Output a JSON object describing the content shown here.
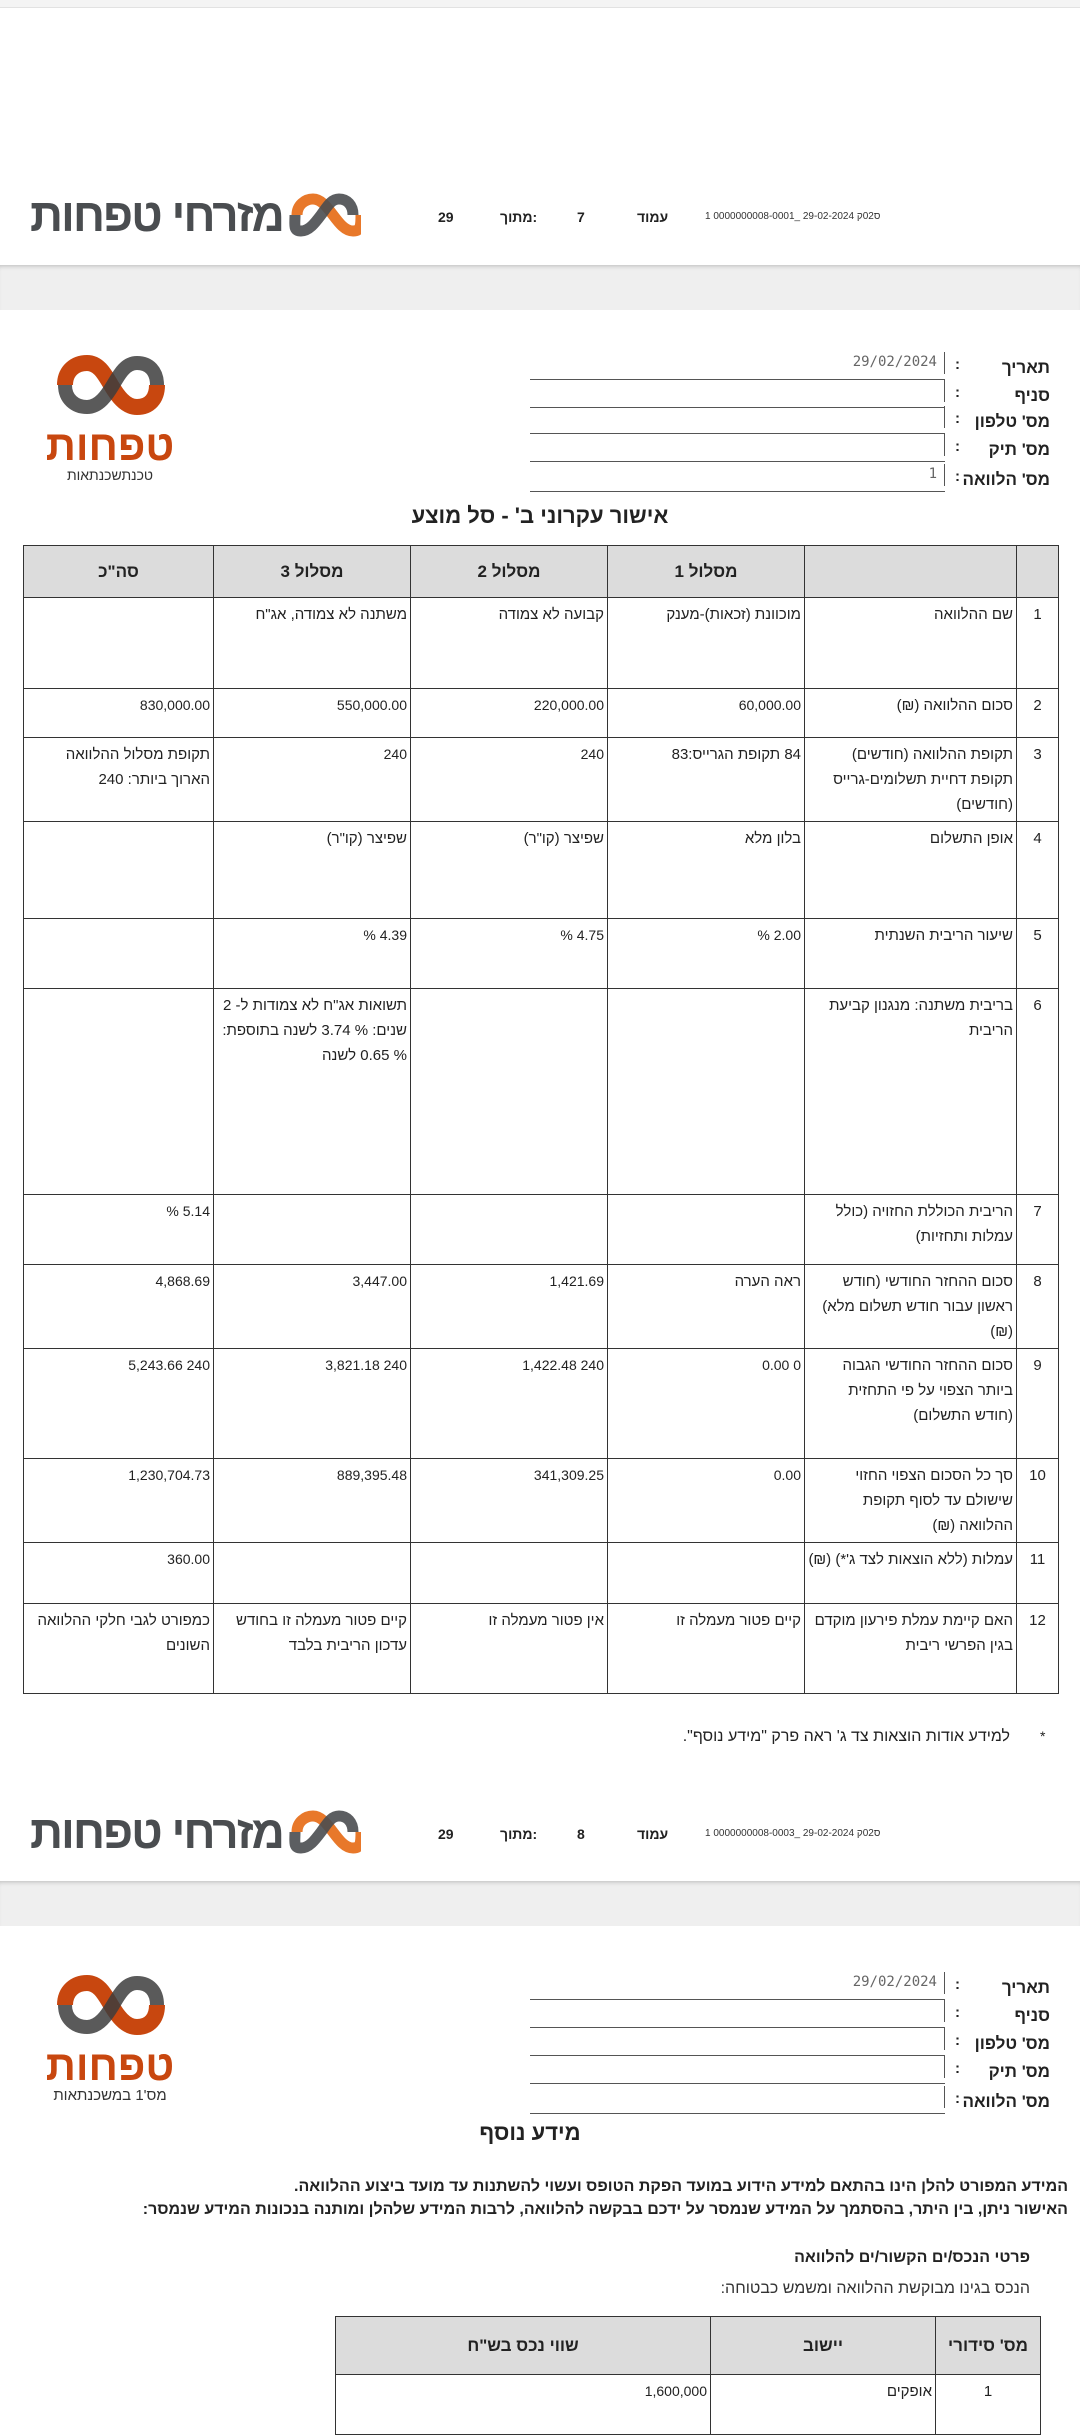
{
  "brand": {
    "name": "מזרחי טפחות",
    "logo_word": "טפחות",
    "logo_tagline_p1": "טכנתשכנתאות",
    "logo_tagline_p2": "מס'1 במשכנתאות",
    "colors": {
      "orange": "#e8782a",
      "dark": "#4a4d50",
      "red_orange": "#c8470f"
    }
  },
  "page_headers": [
    {
      "page_label": "עמוד",
      "page": "7",
      "of_label": "מתוך:",
      "total": "29",
      "doc_code": "1 0000000008-0001_ 29-02-2024 ס02ק"
    },
    {
      "page_label": "עמוד",
      "page": "8",
      "of_label": "מתוך:",
      "total": "29",
      "doc_code": "1 0000000008-0003_ 29-02-2024 ס02ק"
    }
  ],
  "form1": {
    "fields": [
      {
        "label": "תאריך",
        "value": "29/02/2024"
      },
      {
        "label": "סניף",
        "value": ""
      },
      {
        "label": "מס' טלפון",
        "value": ""
      },
      {
        "label": "מס' תיק",
        "value": ""
      },
      {
        "label": "מס' הלוואה",
        "value": "1"
      }
    ],
    "title": "אישור עקרוני ב'   - סל מוצע"
  },
  "loan_table": {
    "headers": [
      "",
      "",
      "מסלול 1",
      "מסלול 2",
      "מסלול 3",
      "סה\"כ"
    ],
    "rows": [
      {
        "n": "1",
        "label": "שם ההלוואה",
        "p1": "מוכוונת (זכאות)-מענק",
        "p2": "קבועה לא צמודה",
        "p3": "משתנה לא צמודה, אג\"ח",
        "total": ""
      },
      {
        "n": "2",
        "label": "סכום ההלוואה (₪)",
        "p1": "60,000.00",
        "p2": "220,000.00",
        "p3": "550,000.00",
        "total": "830,000.00"
      },
      {
        "n": "3",
        "label": "תקופת ההלוואה (חודשים)  תקופת דחיית תשלומים-גרייס (חודשים)",
        "p1": "84  תקופת הגרייס:83",
        "p2": "240",
        "p3": "240",
        "total": "תקופת מסלול ההלוואה הארוך ביותר: 240"
      },
      {
        "n": "4",
        "label": "אופן התשלום",
        "p1": "בלון מלא",
        "p2": "שפיצר (קו\"ר)",
        "p3": "שפיצר (קו\"ר)",
        "total": ""
      },
      {
        "n": "5",
        "label": "שיעור הריבית השנתית",
        "p1": "% 2.00",
        "p2": "% 4.75",
        "p3": "% 4.39",
        "total": ""
      },
      {
        "n": "6",
        "label": "בריבית משתנה: מנגנון קביעת הריבית",
        "p1": "",
        "p2": "",
        "p3": "תשואות אג\"ח לא צמודות ל- 2 שנים: % 3.74 לשנה בתוספת: % 0.65 לשנה",
        "total": ""
      },
      {
        "n": "7",
        "label": "הריבית הכוללת החזויה (כולל עמלות ותחזיות)",
        "p1": "",
        "p2": "",
        "p3": "",
        "total": "% 5.14"
      },
      {
        "n": "8",
        "label": "סכום ההחזר החודשי (חודש ראשון עבור חודש תשלום מלא) (₪)",
        "p1": "ראה הערה",
        "p2": "1,421.69",
        "p3": "3,447.00",
        "total": "4,868.69"
      },
      {
        "n": "9",
        "label": "סכום ההחזר החודשי הגבוה ביותר הצפוי על פי התחזית (חודש התשלום)",
        "p1": "0.00  0",
        "p2": "1,422.48  240",
        "p3": "3,821.18  240",
        "total": "5,243.66  240"
      },
      {
        "n": "10",
        "label": "סך כל הסכום הצפוי החזוי שישולם עד לסוף תקופת ההלוואה (₪)",
        "p1": "0.00",
        "p2": "341,309.25",
        "p3": "889,395.48",
        "total": "1,230,704.73"
      },
      {
        "n": "11",
        "label": "עמלות (ללא הוצאות לצד ג'*) (₪)",
        "p1": "",
        "p2": "",
        "p3": "",
        "total": "360.00"
      },
      {
        "n": "12",
        "label": "האם קיימת עמלת פירעון מוקדם בגין הפרשי ריבית",
        "p1": "קיים פטור מעמלה זו",
        "p2": "אין פטור מעמלה זו",
        "p3": "קיים פטור מעמלה זו בחודש עדכון הריבית בלבד",
        "total": "כמפורט לגבי חלקי ההלוואה השונים"
      }
    ]
  },
  "footnote": {
    "mark": "*",
    "text": "למידע אודות הוצאות צד ג' ראה פרק \"מידע נוסף\"."
  },
  "form2": {
    "fields": [
      {
        "label": "תאריך",
        "value": "29/02/2024"
      },
      {
        "label": "סניף",
        "value": ""
      },
      {
        "label": "מס' טלפון",
        "value": ""
      },
      {
        "label": "מס' תיק",
        "value": ""
      },
      {
        "label": "מס' הלוואה",
        "value": ""
      }
    ],
    "title": "מידע נוסף",
    "para1": "המידע המפורט להלן הינו בהתאם למידע הידוע במועד הפקת הטופס ועשוי להשתנות עד מועד ביצוע ההלוואה.",
    "para2": "האישור ניתן, בין היתר, בהסתמך על המידע שנמסר על ידכם בבקשה להלוואה, לרבות המידע שלהלן ומותנה בנכונות המידע שנמסר:",
    "subheading": "פרטי הנכס/ים הקשור/ים להלוואה",
    "subnote": "הנכס בגינו מבוקשת ההלוואה ומשמש כבטוחה:",
    "property_table": {
      "headers": [
        "מס' סידורי",
        "יישוב",
        "שווי נכס בש\"ח"
      ],
      "rows": [
        {
          "n": "1",
          "city": "אופקים",
          "value": "1,600,000"
        }
      ]
    }
  }
}
